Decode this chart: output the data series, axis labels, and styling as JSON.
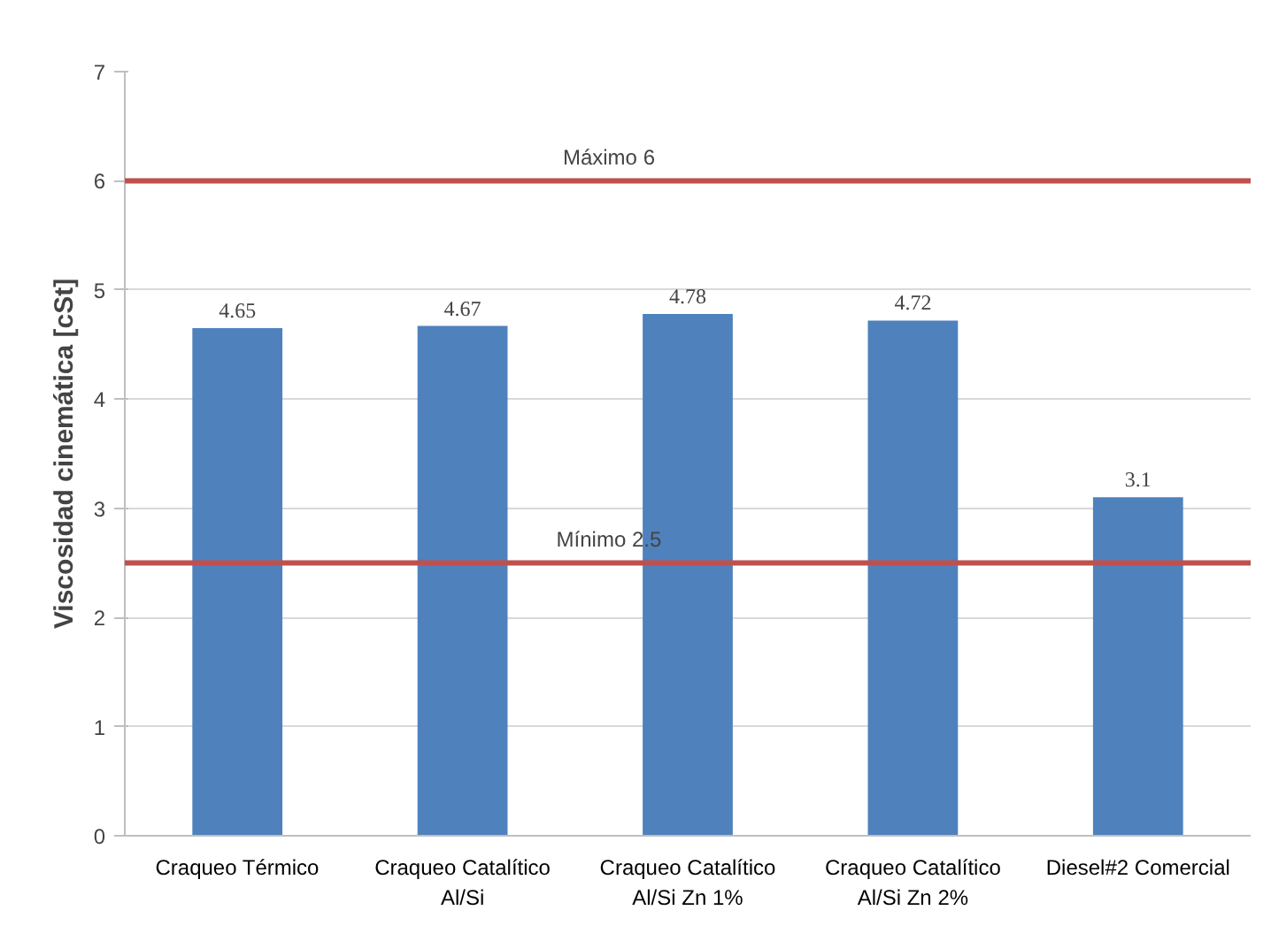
{
  "chart_data": {
    "type": "bar",
    "ylabel": "Viscosidad cinemática [cSt]",
    "categories": [
      "Craqueo Térmico",
      "Craqueo Catalítico\nAl/Si",
      "Craqueo Catalítico\nAl/Si Zn 1%",
      "Craqueo Catalítico\nAl/Si Zn 2%",
      "Diesel#2 Comercial"
    ],
    "values": [
      4.65,
      4.67,
      4.78,
      4.72,
      3.1
    ],
    "color": "#4f81bd",
    "ylim": [
      0,
      7
    ],
    "yticks": [
      0,
      1,
      2,
      3,
      4,
      5,
      6,
      7
    ],
    "grid": "y",
    "data_labels": true,
    "ref_lines": [
      {
        "axis": "y",
        "value": 6,
        "label": "Máximo 6",
        "color": "#c0504d"
      },
      {
        "axis": "y",
        "value": 2.5,
        "label": "Mínimo 2.5",
        "color": "#c0504d"
      }
    ]
  }
}
